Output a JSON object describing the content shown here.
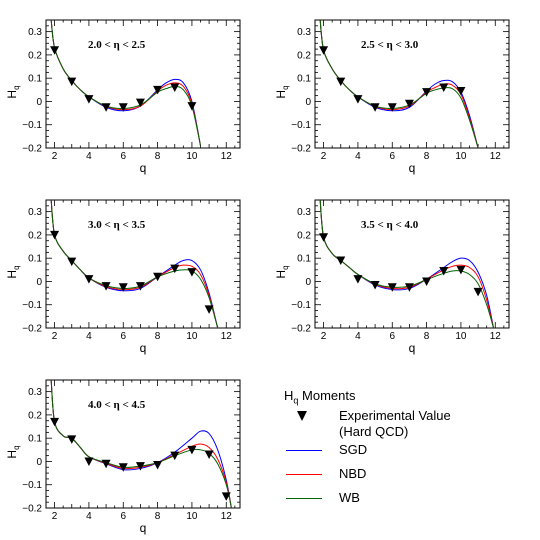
{
  "chart_data": {
    "type": "line",
    "panels": [
      {
        "range_label": "2.0 <  η < 2.5",
        "xlabel": "q",
        "ylabel": "H_q",
        "xlim": [
          1.5,
          12.8
        ],
        "ylim": [
          -0.2,
          0.35
        ],
        "xticks": [
          2,
          4,
          6,
          8,
          10,
          12
        ],
        "xtick_labels": [
          "2",
          "4",
          "6",
          "8",
          "10",
          "12"
        ],
        "yticks": [
          -0.2,
          -0.1,
          0,
          0.1,
          0.2,
          0.3
        ],
        "ytick_labels": [
          "−0.2",
          "−0.1",
          "0",
          "0.1",
          "0.2",
          "0.3"
        ],
        "series": [
          {
            "name": "SGD",
            "x": [
              1.8,
              2,
              2.5,
              3,
              3.5,
              4,
              5,
              6,
              7,
              8,
              8.5,
              9,
              9.5,
              10,
              10.5
            ],
            "y": [
              0.35,
              0.23,
              0.14,
              0.09,
              0.05,
              0.02,
              -0.025,
              -0.04,
              -0.02,
              0.05,
              0.08,
              0.095,
              0.08,
              0.0,
              -0.19
            ]
          },
          {
            "name": "NBD",
            "x": [
              1.8,
              2,
              2.5,
              3,
              3.5,
              4,
              5,
              6,
              7,
              8,
              8.5,
              9,
              9.5,
              10,
              10.5
            ],
            "y": [
              0.35,
              0.23,
              0.14,
              0.09,
              0.05,
              0.02,
              -0.022,
              -0.035,
              -0.02,
              0.045,
              0.07,
              0.08,
              0.065,
              -0.01,
              -0.19
            ]
          },
          {
            "name": "WB",
            "x": [
              1.8,
              2,
              2.5,
              3,
              3.5,
              4,
              5,
              6,
              7,
              8,
              8.5,
              9,
              9.5,
              10,
              10.5
            ],
            "y": [
              0.35,
              0.23,
              0.14,
              0.09,
              0.05,
              0.02,
              -0.02,
              -0.03,
              -0.015,
              0.04,
              0.055,
              0.065,
              0.05,
              -0.02,
              -0.19
            ]
          }
        ],
        "experimental": {
          "name": "Experimental Value (Hard QCD)",
          "x": [
            2,
            3,
            4,
            5,
            6,
            7,
            8,
            9,
            10
          ],
          "y": [
            0.22,
            0.085,
            0.01,
            -0.025,
            -0.025,
            -0.005,
            0.05,
            0.06,
            -0.02
          ]
        }
      },
      {
        "range_label": "2.5 <  η < 3.0",
        "xlabel": "q",
        "ylabel": "H_q",
        "xlim": [
          1.5,
          12.8
        ],
        "ylim": [
          -0.2,
          0.35
        ],
        "xticks": [
          2,
          4,
          6,
          8,
          10,
          12
        ],
        "xtick_labels": [
          "2",
          "4",
          "6",
          "8",
          "10",
          "12"
        ],
        "yticks": [
          -0.2,
          -0.1,
          0,
          0.1,
          0.2,
          0.3
        ],
        "ytick_labels": [
          "−0.2",
          "−0.1",
          "0",
          "0.1",
          "0.2",
          "0.3"
        ],
        "series": [
          {
            "name": "SGD",
            "x": [
              1.8,
              2,
              2.5,
              3,
              3.5,
              4,
              5,
              6,
              7,
              8,
              8.5,
              9,
              9.5,
              10,
              10.5,
              11
            ],
            "y": [
              0.35,
              0.22,
              0.14,
              0.09,
              0.05,
              0.02,
              -0.025,
              -0.04,
              -0.025,
              0.045,
              0.075,
              0.09,
              0.085,
              0.04,
              -0.06,
              -0.2
            ]
          },
          {
            "name": "NBD",
            "x": [
              1.8,
              2,
              2.5,
              3,
              3.5,
              4,
              5,
              6,
              7,
              8,
              8.5,
              9,
              9.5,
              10,
              10.5,
              11
            ],
            "y": [
              0.35,
              0.22,
              0.14,
              0.09,
              0.05,
              0.02,
              -0.022,
              -0.035,
              -0.02,
              0.04,
              0.06,
              0.075,
              0.07,
              0.03,
              -0.07,
              -0.2
            ]
          },
          {
            "name": "WB",
            "x": [
              1.8,
              2,
              2.5,
              3,
              3.5,
              4,
              5,
              6,
              7,
              8,
              8.5,
              9,
              9.5,
              10,
              10.5,
              11
            ],
            "y": [
              0.35,
              0.22,
              0.14,
              0.09,
              0.05,
              0.02,
              -0.02,
              -0.03,
              -0.015,
              0.035,
              0.05,
              0.058,
              0.055,
              0.015,
              -0.08,
              -0.2
            ]
          }
        ],
        "experimental": {
          "name": "Experimental Value (Hard QCD)",
          "x": [
            2,
            3,
            4,
            5,
            6,
            7,
            8,
            9,
            10
          ],
          "y": [
            0.22,
            0.085,
            0.01,
            -0.025,
            -0.025,
            -0.01,
            0.04,
            0.06,
            0.045
          ]
        }
      },
      {
        "range_label": "3.0 <  η < 3.5",
        "xlabel": "q",
        "ylabel": "H_q",
        "xlim": [
          1.5,
          12.8
        ],
        "ylim": [
          -0.2,
          0.35
        ],
        "xticks": [
          2,
          4,
          6,
          8,
          10,
          12
        ],
        "xtick_labels": [
          "2",
          "4",
          "6",
          "8",
          "10",
          "12"
        ],
        "yticks": [
          -0.2,
          -0.1,
          0,
          0.1,
          0.2,
          0.3
        ],
        "ytick_labels": [
          "−0.2",
          "−0.1",
          "0",
          "0.1",
          "0.2",
          "0.3"
        ],
        "series": [
          {
            "name": "SGD",
            "x": [
              1.8,
              2,
              2.5,
              3,
              3.5,
              4,
              5,
              6,
              7,
              8,
              9,
              9.5,
              10,
              10.5,
              11,
              11.5
            ],
            "y": [
              0.35,
              0.2,
              0.13,
              0.09,
              0.05,
              0.015,
              -0.025,
              -0.04,
              -0.03,
              0.02,
              0.07,
              0.09,
              0.09,
              0.05,
              -0.05,
              -0.2
            ]
          },
          {
            "name": "NBD",
            "x": [
              1.8,
              2,
              2.5,
              3,
              3.5,
              4,
              5,
              6,
              7,
              8,
              9,
              9.5,
              10,
              10.5,
              11,
              11.5
            ],
            "y": [
              0.35,
              0.2,
              0.13,
              0.09,
              0.05,
              0.015,
              -0.022,
              -0.035,
              -0.025,
              0.02,
              0.06,
              0.07,
              0.065,
              0.03,
              -0.06,
              -0.2
            ]
          },
          {
            "name": "WB",
            "x": [
              1.8,
              2,
              2.5,
              3,
              3.5,
              4,
              5,
              6,
              7,
              8,
              9,
              9.5,
              10,
              10.5,
              11,
              11.5
            ],
            "y": [
              0.35,
              0.2,
              0.13,
              0.09,
              0.05,
              0.015,
              -0.018,
              -0.03,
              -0.02,
              0.02,
              0.045,
              0.05,
              0.045,
              0.01,
              -0.07,
              -0.2
            ]
          }
        ],
        "experimental": {
          "name": "Experimental Value (Hard QCD)",
          "x": [
            2,
            3,
            4,
            5,
            6,
            7,
            8,
            9,
            10,
            11
          ],
          "y": [
            0.2,
            0.085,
            0.01,
            -0.02,
            -0.025,
            -0.02,
            0.02,
            0.055,
            0.04,
            -0.12
          ]
        }
      },
      {
        "range_label": "3.5 <  η < 4.0",
        "xlabel": "q",
        "ylabel": "H_q",
        "xlim": [
          1.5,
          12.8
        ],
        "ylim": [
          -0.2,
          0.35
        ],
        "xticks": [
          2,
          4,
          6,
          8,
          10,
          12
        ],
        "xtick_labels": [
          "2",
          "4",
          "6",
          "8",
          "10",
          "12"
        ],
        "yticks": [
          -0.2,
          -0.1,
          0,
          0.1,
          0.2,
          0.3
        ],
        "ytick_labels": [
          "−0.2",
          "−0.1",
          "0",
          "0.1",
          "0.2",
          "0.3"
        ],
        "series": [
          {
            "name": "SGD",
            "x": [
              1.8,
              2,
              2.5,
              3,
              3.5,
              4,
              5,
              6,
              7,
              8,
              9,
              9.5,
              10,
              10.5,
              11,
              11.5,
              11.9
            ],
            "y": [
              0.35,
              0.19,
              0.12,
              0.09,
              0.06,
              0.03,
              -0.015,
              -0.035,
              -0.03,
              0.01,
              0.06,
              0.085,
              0.1,
              0.09,
              0.04,
              -0.06,
              -0.2
            ]
          },
          {
            "name": "NBD",
            "x": [
              1.8,
              2,
              2.5,
              3,
              3.5,
              4,
              5,
              6,
              7,
              8,
              9,
              9.5,
              10,
              10.5,
              11,
              11.5,
              11.9
            ],
            "y": [
              0.35,
              0.19,
              0.12,
              0.09,
              0.06,
              0.03,
              -0.012,
              -0.03,
              -0.025,
              0.01,
              0.05,
              0.065,
              0.07,
              0.06,
              0.02,
              -0.08,
              -0.2
            ]
          },
          {
            "name": "WB",
            "x": [
              1.8,
              2,
              2.5,
              3,
              3.5,
              4,
              5,
              6,
              7,
              8,
              9,
              9.5,
              10,
              10.5,
              11,
              11.5,
              11.9
            ],
            "y": [
              0.35,
              0.19,
              0.12,
              0.09,
              0.06,
              0.03,
              -0.01,
              -0.025,
              -0.02,
              0.008,
              0.035,
              0.045,
              0.045,
              0.03,
              -0.01,
              -0.1,
              -0.2
            ]
          }
        ],
        "experimental": {
          "name": "Experimental Value (Hard QCD)",
          "x": [
            2,
            3,
            4,
            5,
            6,
            7,
            8,
            9,
            10,
            11
          ],
          "y": [
            0.19,
            0.09,
            0.01,
            -0.015,
            -0.025,
            -0.025,
            0.0,
            0.045,
            0.05,
            -0.045
          ]
        }
      },
      {
        "range_label": "4.0 <  η < 4.5",
        "xlabel": "q",
        "ylabel": "H_q",
        "xlim": [
          1.5,
          12.8
        ],
        "ylim": [
          -0.2,
          0.35
        ],
        "xticks": [
          2,
          4,
          6,
          8,
          10,
          12
        ],
        "xtick_labels": [
          "2",
          "4",
          "6",
          "8",
          "10",
          "12"
        ],
        "yticks": [
          -0.2,
          -0.1,
          0,
          0.1,
          0.2,
          0.3
        ],
        "ytick_labels": [
          "−0.2",
          "−0.1",
          "0",
          "0.1",
          "0.2",
          "0.3"
        ],
        "series": [
          {
            "name": "SGD",
            "x": [
              1.8,
              2,
              2.5,
              3,
              3.5,
              4,
              5,
              6,
              7,
              8,
              9,
              10,
              10.5,
              11,
              11.5,
              12,
              12.3
            ],
            "y": [
              0.35,
              0.17,
              0.11,
              0.1,
              0.06,
              0.02,
              -0.01,
              -0.035,
              -0.03,
              -0.005,
              0.04,
              0.1,
              0.13,
              0.12,
              0.05,
              -0.08,
              -0.2
            ]
          },
          {
            "name": "NBD",
            "x": [
              1.8,
              2,
              2.5,
              3,
              3.5,
              4,
              5,
              6,
              7,
              8,
              9,
              10,
              10.5,
              11,
              11.5,
              12,
              12.3
            ],
            "y": [
              0.35,
              0.17,
              0.11,
              0.1,
              0.06,
              0.02,
              -0.008,
              -0.03,
              -0.025,
              -0.005,
              0.03,
              0.065,
              0.075,
              0.06,
              0.01,
              -0.09,
              -0.2
            ]
          },
          {
            "name": "WB",
            "x": [
              1.8,
              2,
              2.5,
              3,
              3.5,
              4,
              5,
              6,
              7,
              8,
              9,
              10,
              10.5,
              11,
              11.5,
              12,
              12.3
            ],
            "y": [
              0.35,
              0.17,
              0.11,
              0.1,
              0.06,
              0.02,
              -0.005,
              -0.025,
              -0.02,
              -0.005,
              0.025,
              0.05,
              0.05,
              0.035,
              -0.01,
              -0.1,
              -0.2
            ]
          }
        ],
        "experimental": {
          "name": "Experimental Value (Hard QCD)",
          "x": [
            2,
            3,
            4,
            5,
            6,
            7,
            8,
            9,
            10,
            11,
            12
          ],
          "y": [
            0.17,
            0.095,
            0.0,
            -0.01,
            -0.025,
            -0.02,
            -0.015,
            0.025,
            0.05,
            0.03,
            -0.15
          ]
        }
      }
    ]
  },
  "legend": {
    "title_main": "H",
    "title_sub": "q",
    "title_rest": " Moments",
    "experimental_line1": "Experimental Value",
    "experimental_line2": "(Hard QCD)",
    "sgd": "SGD",
    "nbd": "NBD",
    "wb": "WB"
  },
  "colors": {
    "SGD": "#0000ff",
    "NBD": "#ff0000",
    "WB": "#006400",
    "experimental": "#000000"
  }
}
